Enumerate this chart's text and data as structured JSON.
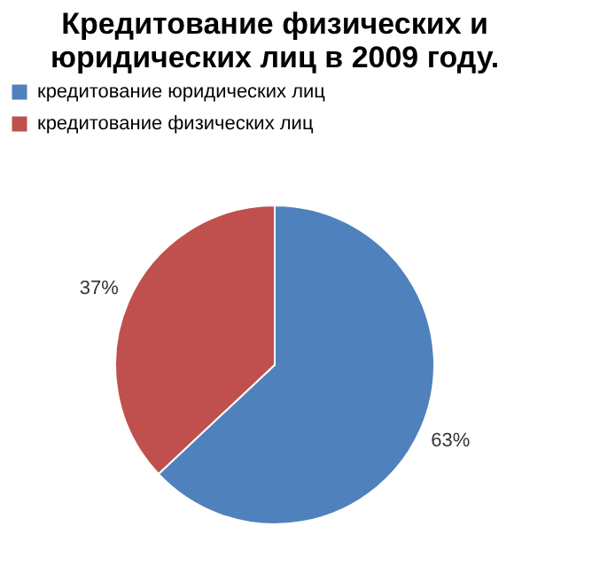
{
  "chart_data": {
    "type": "pie",
    "title": "Кредитование физических и юридических лиц в 2009 году.",
    "categories": [
      "кредитование юридических лиц",
      "кредитование физических лиц"
    ],
    "values": [
      63,
      37
    ],
    "colors": [
      "#4f81bd",
      "#c0504d"
    ],
    "value_labels": [
      "63%",
      "37%"
    ],
    "legend": "top"
  }
}
